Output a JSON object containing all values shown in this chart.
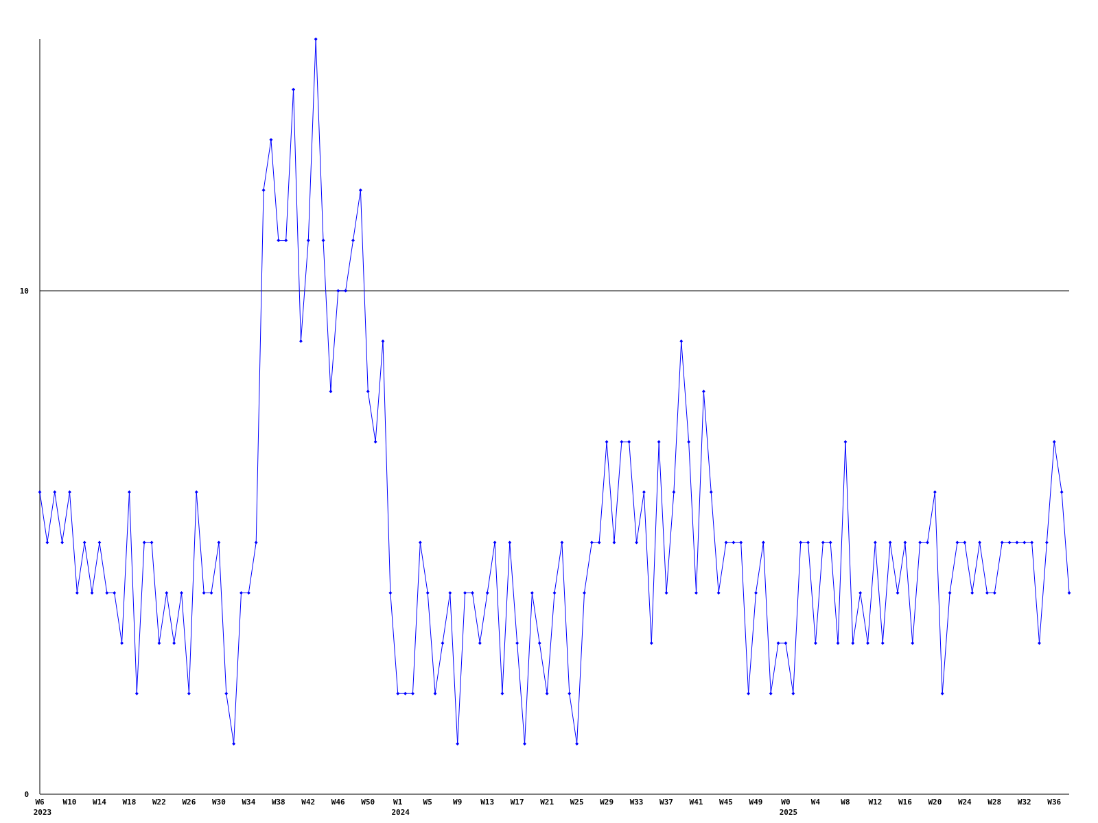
{
  "chart_data": {
    "type": "line",
    "categories": [
      "W6\n2023",
      null,
      null,
      null,
      "W10",
      null,
      null,
      null,
      "W14",
      null,
      null,
      null,
      "W18",
      null,
      null,
      null,
      "W22",
      null,
      null,
      null,
      "W26",
      null,
      null,
      null,
      "W30",
      null,
      null,
      null,
      "W34",
      null,
      null,
      null,
      "W38",
      null,
      null,
      null,
      "W42",
      null,
      null,
      null,
      "W46",
      null,
      null,
      null,
      "W50",
      null,
      null,
      null,
      "W1\n2024",
      null,
      null,
      null,
      "W5",
      null,
      null,
      null,
      "W9",
      null,
      null,
      null,
      "W13",
      null,
      null,
      null,
      "W17",
      null,
      null,
      null,
      "W21",
      null,
      null,
      null,
      "W25",
      null,
      null,
      null,
      "W29",
      null,
      null,
      null,
      "W33",
      null,
      null,
      null,
      "W37",
      null,
      null,
      null,
      "W41",
      null,
      null,
      null,
      "W45",
      null,
      null,
      null,
      "W49",
      null,
      null,
      null,
      "W0\n2025",
      null,
      null,
      null,
      "W4",
      null,
      null,
      null,
      "W8",
      null,
      null,
      null,
      "W12",
      null,
      null,
      null,
      "W16",
      null,
      null,
      null,
      "W20",
      null,
      null,
      null,
      "W24",
      null,
      null,
      null,
      "W28",
      null,
      null,
      null,
      "W32",
      null,
      null,
      null,
      "W36",
      null,
      null
    ],
    "series": [
      {
        "color": "#0000ff",
        "values": [
          6,
          5,
          6,
          5,
          6,
          4,
          5,
          4,
          5,
          4,
          4,
          3,
          6,
          2,
          5,
          5,
          3,
          4,
          3,
          4,
          2,
          6,
          4,
          4,
          5,
          2,
          1,
          4,
          4,
          5,
          12,
          13,
          11,
          11,
          14,
          9,
          11,
          15,
          11,
          8,
          10,
          10,
          11,
          12,
          8,
          7,
          9,
          4,
          2,
          2,
          2,
          5,
          4,
          2,
          3,
          4,
          1,
          4,
          4,
          3,
          4,
          5,
          2,
          5,
          3,
          1,
          4,
          3,
          2,
          4,
          5,
          2,
          1,
          4,
          5,
          5,
          7,
          5,
          7,
          7,
          5,
          6,
          3,
          7,
          4,
          6,
          9,
          7,
          4,
          8,
          6,
          4,
          5,
          5,
          5,
          2,
          4,
          5,
          2,
          3,
          3,
          2,
          5,
          5,
          3,
          5,
          5,
          3,
          7,
          3,
          4,
          3,
          5,
          3,
          5,
          4,
          5,
          3,
          5,
          5,
          6,
          2,
          4,
          5,
          5,
          4,
          5,
          4,
          4,
          5,
          5,
          5,
          5,
          5,
          3,
          5,
          7,
          6,
          4
        ]
      }
    ],
    "ylim": [
      0,
      15
    ],
    "yticks": [
      0,
      10
    ],
    "grid": "y",
    "marker": "diamond",
    "line_style": "solid"
  }
}
